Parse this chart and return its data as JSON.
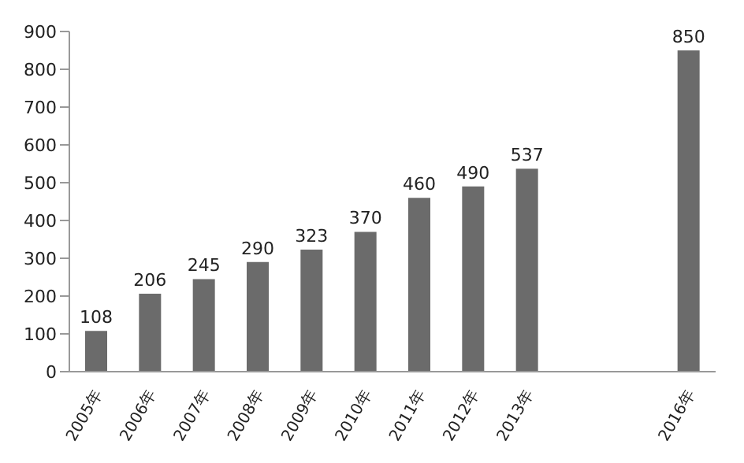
{
  "chart_data": {
    "type": "bar",
    "categories": [
      "2005年",
      "2006年",
      "2007年",
      "2008年",
      "2009年",
      "2010年",
      "2011年",
      "2012年",
      "2013年",
      null,
      null,
      "2016年"
    ],
    "values": [
      108,
      206,
      245,
      290,
      323,
      370,
      460,
      490,
      537,
      null,
      null,
      850
    ],
    "color": "#6b6b6b",
    "ylim": [
      0,
      900
    ],
    "yticks": [
      0,
      100,
      200,
      300,
      400,
      500,
      600,
      700,
      800,
      900
    ],
    "grid": false,
    "data_labels": true
  }
}
